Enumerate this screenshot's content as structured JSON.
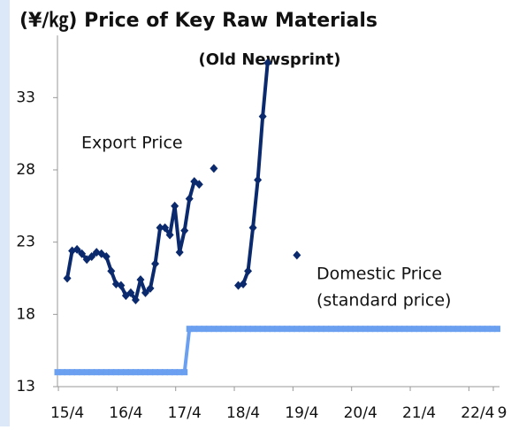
{
  "chart_data": {
    "type": "line",
    "title": "(¥/㎏) Price of Key Raw Materials",
    "subtitle": "(Old Newsprint)",
    "annotations": [
      "Export Price",
      "Domestic Price",
      "(standard price)"
    ],
    "xlim": [
      -2,
      89
    ],
    "xticks": [
      {
        "value": 0,
        "label": "15/4"
      },
      {
        "value": 12,
        "label": "16/4"
      },
      {
        "value": 24,
        "label": "17/4"
      },
      {
        "value": 36,
        "label": "18/4"
      },
      {
        "value": 48,
        "label": "19/4"
      },
      {
        "value": 60,
        "label": "20/4"
      },
      {
        "value": 72,
        "label": "21/4"
      },
      {
        "value": 84,
        "label": "22/4"
      },
      {
        "value": 89,
        "label": "9"
      }
    ],
    "ylim": [
      13,
      37
    ],
    "yticks": [
      13,
      18,
      23,
      28,
      33
    ],
    "series": [
      {
        "name": "Export Price",
        "color": "#0b2a6e",
        "marker": "diamond",
        "x": [
          0,
          1,
          2,
          3,
          4,
          5,
          6,
          7,
          8,
          9,
          10,
          11,
          12,
          13,
          14,
          15,
          16,
          17,
          18,
          19,
          20,
          21,
          22,
          23,
          24,
          25,
          26,
          27,
          28,
          29,
          30,
          31,
          32,
          33,
          34,
          35,
          36,
          37,
          38,
          39,
          40,
          41,
          42,
          43,
          44,
          45,
          46,
          47
        ],
        "values": [
          20.5,
          22.4,
          22.5,
          22.2,
          21.8,
          22.0,
          22.3,
          22.2,
          22.0,
          21.0,
          20.1,
          20.0,
          19.3,
          19.5,
          19.0,
          20.4,
          19.5,
          19.8,
          21.5,
          24.0,
          24.0,
          23.5,
          25.5,
          22.3,
          23.8,
          26.0,
          27.2,
          27.0,
          null,
          null,
          28.1,
          null,
          null,
          null,
          null,
          20.0,
          20.1,
          21.0,
          24.0,
          27.3,
          31.7,
          35.4,
          null,
          null,
          null,
          null,
          null,
          22.1
        ]
      },
      {
        "name": "Domestic Price",
        "color": "#6b9ff0",
        "marker": "square",
        "x": [
          -2,
          -1,
          0,
          1,
          2,
          3,
          4,
          5,
          6,
          7,
          8,
          9,
          10,
          11,
          12,
          13,
          14,
          15,
          16,
          17,
          18,
          19,
          20,
          21,
          22,
          23,
          24,
          25,
          26,
          27,
          28,
          29,
          30,
          31,
          32,
          33,
          34,
          35,
          36,
          37,
          38,
          39,
          40,
          41,
          42,
          43,
          44,
          45,
          46,
          47,
          48,
          49,
          50,
          51,
          52,
          53,
          54,
          55,
          56,
          57,
          58,
          59,
          60,
          61,
          62,
          63,
          64,
          65,
          66,
          67,
          68,
          69,
          70,
          71,
          72,
          73,
          74,
          75,
          76,
          77,
          78,
          79,
          80,
          81,
          82,
          83,
          84,
          85,
          86,
          87,
          88
        ],
        "values": [
          14,
          14,
          14,
          14,
          14,
          14,
          14,
          14,
          14,
          14,
          14,
          14,
          14,
          14,
          14,
          14,
          14,
          14,
          14,
          14,
          14,
          14,
          14,
          14,
          14,
          14,
          14,
          17,
          17,
          17,
          17,
          17,
          17,
          17,
          17,
          17,
          17,
          17,
          17,
          17,
          17,
          17,
          17,
          17,
          17,
          17,
          17,
          17,
          17,
          17,
          17,
          17,
          17,
          17,
          17,
          17,
          17,
          17,
          17,
          17,
          17,
          17,
          17,
          17,
          17,
          17,
          17,
          17,
          17,
          17,
          17,
          17,
          17,
          17,
          17,
          17,
          17,
          17,
          17,
          17,
          17,
          17,
          17,
          17,
          17,
          17,
          17,
          17,
          17,
          17,
          17
        ]
      }
    ]
  }
}
